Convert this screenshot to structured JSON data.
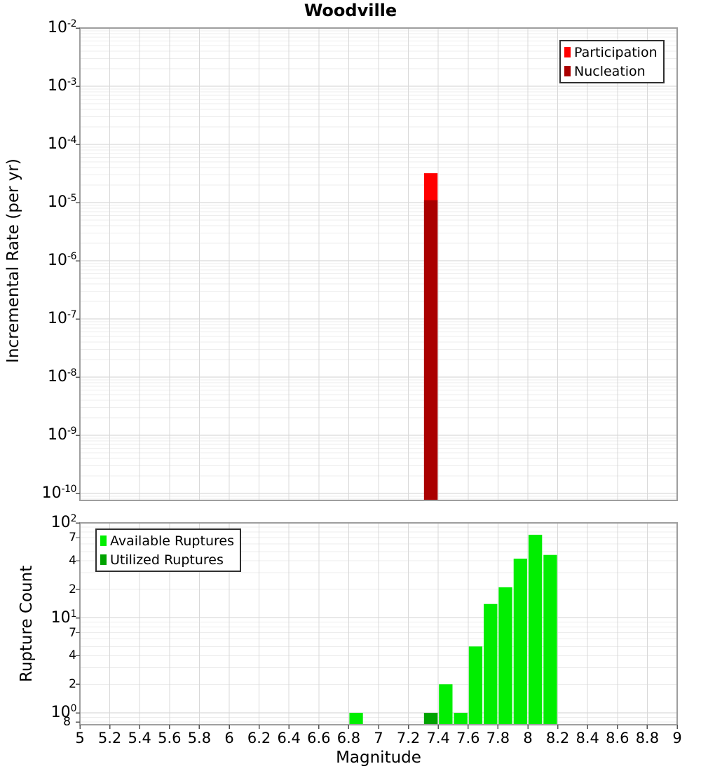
{
  "title": "Woodville",
  "colors": {
    "participation": "#ff0000",
    "nucleation": "#aa0000",
    "available": "#00ee00",
    "utilized": "#00a300",
    "grid_minor": "#ededed",
    "grid_major": "#d2d2d2",
    "grid_vertical": "#d8d8d8",
    "panel_border": "#9e9e9e",
    "tick": "#555555"
  },
  "chart_data": [
    {
      "type": "bar",
      "panel": "top",
      "title": "Woodville",
      "ylabel": "Incremental Rate (per yr)",
      "xlabel": "",
      "x_range": [
        5,
        9
      ],
      "y_scale": "log",
      "y_range": [
        7.6e-11,
        0.01
      ],
      "y_major_tick_exponents": [
        -2,
        -3,
        -4,
        -5,
        -6,
        -7,
        -8,
        -9,
        -10
      ],
      "bin_width": 0.1,
      "grid": true,
      "legend_position": "top-right",
      "legend": [
        {
          "label": "Participation",
          "color": "#ff0000"
        },
        {
          "label": "Nucleation",
          "color": "#aa0000"
        }
      ],
      "series": [
        {
          "name": "Participation",
          "color": "#ff0000",
          "bars": [
            {
              "mag": 7.3,
              "value": 3.2e-05
            }
          ]
        },
        {
          "name": "Nucleation",
          "color": "#aa0000",
          "bars": [
            {
              "mag": 7.3,
              "value": 1.1e-05
            }
          ]
        }
      ]
    },
    {
      "type": "bar",
      "panel": "bottom",
      "title": "",
      "ylabel": "Rupture Count",
      "xlabel": "Magnitude",
      "x_range": [
        5,
        9
      ],
      "x_tick_step": 0.2,
      "x_tick_labels": [
        "5",
        "5.2",
        "5.4",
        "5.6",
        "5.8",
        "6",
        "6.2",
        "6.4",
        "6.6",
        "6.8",
        "7",
        "7.2",
        "7.4",
        "7.6",
        "7.8",
        "8",
        "8.2",
        "8.4",
        "8.6",
        "8.8",
        "9"
      ],
      "y_scale": "log",
      "y_range": [
        0.75,
        100
      ],
      "y_major_tick_exponents": [
        2,
        1,
        0
      ],
      "y_minor_labeled_ticks": [
        {
          "value": 70,
          "label": "7"
        },
        {
          "value": 40,
          "label": "4"
        },
        {
          "value": 20,
          "label": "2"
        },
        {
          "value": 7,
          "label": "7"
        },
        {
          "value": 4,
          "label": "4"
        },
        {
          "value": 2,
          "label": "2"
        },
        {
          "value": 0.8,
          "label": "8"
        }
      ],
      "bin_width": 0.1,
      "grid": true,
      "legend_position": "top-left",
      "legend": [
        {
          "label": "Available Ruptures",
          "color": "#00ee00"
        },
        {
          "label": "Utilized Ruptures",
          "color": "#00a300"
        }
      ],
      "series": [
        {
          "name": "Available Ruptures",
          "color": "#00ee00",
          "bars": [
            {
              "mag": 6.8,
              "value": 1
            },
            {
              "mag": 7.3,
              "value": 1
            },
            {
              "mag": 7.4,
              "value": 2
            },
            {
              "mag": 7.5,
              "value": 1
            },
            {
              "mag": 7.6,
              "value": 5
            },
            {
              "mag": 7.7,
              "value": 14
            },
            {
              "mag": 7.8,
              "value": 21
            },
            {
              "mag": 7.9,
              "value": 42
            },
            {
              "mag": 8.0,
              "value": 75
            },
            {
              "mag": 8.1,
              "value": 46
            }
          ]
        },
        {
          "name": "Utilized Ruptures",
          "color": "#00a300",
          "bars": [
            {
              "mag": 7.3,
              "value": 1
            }
          ]
        }
      ]
    }
  ]
}
